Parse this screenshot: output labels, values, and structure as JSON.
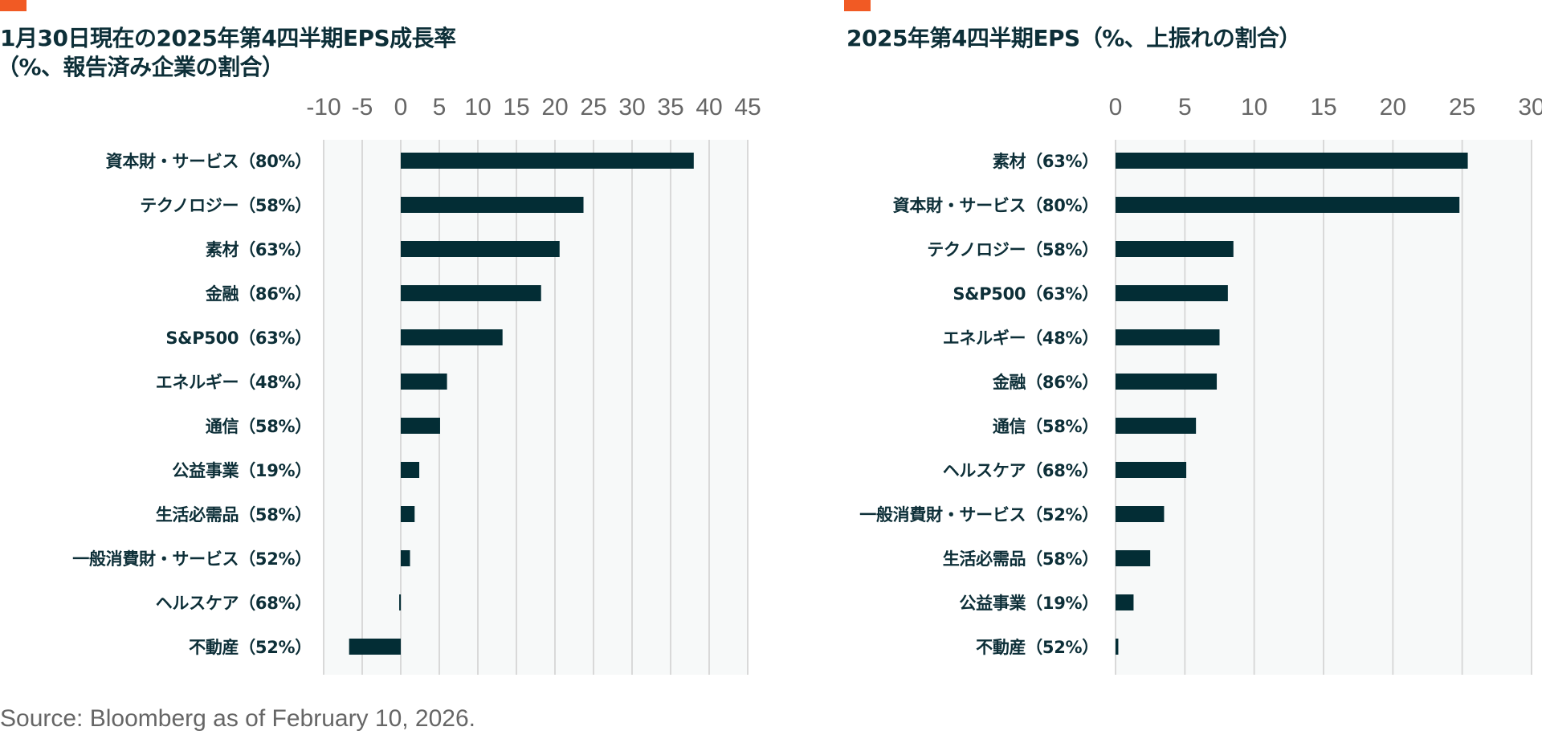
{
  "colors": {
    "accent": "#F15A24",
    "bar": "#032d35",
    "text": "#0d2f38",
    "tick": "#666666",
    "plot_bg": "#f7f9f9",
    "grid": "#d9d9d9"
  },
  "source": "Source: Bloomberg as of February 10, 2026.",
  "chart_data": [
    {
      "type": "bar",
      "orientation": "horizontal",
      "title": "1月30日現在の2025年第4四半期EPS成長率",
      "subtitle": "（%、報告済み企業の割合）",
      "xlabel": "",
      "ylabel": "",
      "xlim": [
        -10,
        45
      ],
      "xticks": [
        -10,
        -5,
        0,
        5,
        10,
        15,
        20,
        25,
        30,
        35,
        40,
        45
      ],
      "xtick_labels": [
        "-10",
        "-5",
        "0",
        "5",
        "10",
        "15",
        "20",
        "25",
        "30",
        "35",
        "40",
        "45"
      ],
      "axis_position": "top",
      "grid": true,
      "legend": "none",
      "categories": [
        "資本財・サービス（80%）",
        "テクノロジー（58%）",
        "素材（63%）",
        "金融（86%）",
        "S&P500（63%）",
        "エネルギー（48%）",
        "通信（58%）",
        "公益事業（19%）",
        "生活必需品（58%）",
        "一般消費財・サービス（52%）",
        "ヘルスケア（68%）",
        "不動産（52%）"
      ],
      "values": [
        38.0,
        23.7,
        20.6,
        18.2,
        13.2,
        6.0,
        5.1,
        2.4,
        1.8,
        1.2,
        -0.2,
        -6.7
      ]
    },
    {
      "type": "bar",
      "orientation": "horizontal",
      "title": "2025年第4四半期EPS（%、上振れの割合）",
      "subtitle": "",
      "xlabel": "",
      "ylabel": "",
      "xlim": [
        0,
        30
      ],
      "xticks": [
        0,
        5,
        10,
        15,
        20,
        25,
        30
      ],
      "xtick_labels": [
        "0",
        "5",
        "10",
        "15",
        "20",
        "25",
        "30"
      ],
      "axis_position": "top",
      "grid": true,
      "legend": "none",
      "categories": [
        "素材（63%）",
        "資本財・サービス（80%）",
        "テクノロジー（58%）",
        "S&P500（63%）",
        "エネルギー（48%）",
        "金融（86%）",
        "通信（58%）",
        "ヘルスケア（68%）",
        "一般消費財・サービス（52%）",
        "生活必需品（58%）",
        "公益事業（19%）",
        "不動産（52%）"
      ],
      "values": [
        25.4,
        24.8,
        8.5,
        8.1,
        7.5,
        7.3,
        5.8,
        5.1,
        3.5,
        2.5,
        1.3,
        0.2
      ]
    }
  ]
}
